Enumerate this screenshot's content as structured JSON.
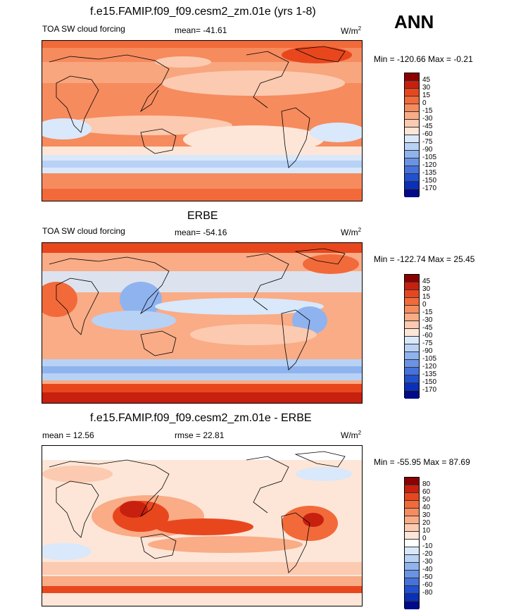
{
  "season": "ANN",
  "panels": [
    {
      "title": "f.e15.FAMIP.f09_f09.cesm2_zm.01e (yrs 1-8)",
      "left_label": "TOA SW cloud forcing",
      "center_label": "mean= -41.61",
      "units_base": "W/m",
      "units_exp": "2",
      "minmax": "Min = -120.66 Max =  -0.21",
      "colorbar": {
        "colors": [
          "#8b0000",
          "#c8200f",
          "#e8471e",
          "#f26a3a",
          "#f68b5e",
          "#f9ac86",
          "#fccab0",
          "#fde6d8",
          "#d9e8fb",
          "#b8d2f5",
          "#8fb3ee",
          "#6a93e6",
          "#4672dc",
          "#2150d0",
          "#0a2fb8",
          "#000a8a"
        ],
        "ticks": [
          "45",
          "30",
          "15",
          "0",
          "-15",
          "-30",
          "-45",
          "-60",
          "-75",
          "-90",
          "-105",
          "-120",
          "-135",
          "-150",
          "-170"
        ]
      }
    },
    {
      "title": "ERBE",
      "left_label": "TOA SW cloud forcing",
      "center_label": "mean= -54.16",
      "units_base": "W/m",
      "units_exp": "2",
      "minmax": "Min = -122.74 Max =  25.45",
      "colorbar": {
        "colors": [
          "#8b0000",
          "#c8200f",
          "#e8471e",
          "#f26a3a",
          "#f68b5e",
          "#f9ac86",
          "#fccab0",
          "#fde6d8",
          "#d9e8fb",
          "#b8d2f5",
          "#8fb3ee",
          "#6a93e6",
          "#4672dc",
          "#2150d0",
          "#0a2fb8",
          "#000a8a"
        ],
        "ticks": [
          "45",
          "30",
          "15",
          "0",
          "-15",
          "-30",
          "-45",
          "-60",
          "-75",
          "-90",
          "-105",
          "-120",
          "-135",
          "-150",
          "-170"
        ]
      }
    },
    {
      "title": "f.e15.FAMIP.f09_f09.cesm2_zm.01e - ERBE",
      "left_label": "mean =  12.56",
      "center_label": "rmse =  22.81",
      "units_base": "W/m",
      "units_exp": "2",
      "minmax": "Min = -55.95 Max =  87.69",
      "colorbar": {
        "colors": [
          "#8b0000",
          "#c8200f",
          "#e8471e",
          "#f26a3a",
          "#f68b5e",
          "#f9ac86",
          "#fccab0",
          "#fde6d8",
          "#ffffff",
          "#d9e8fb",
          "#b8d2f5",
          "#8fb3ee",
          "#6a93e6",
          "#4672dc",
          "#2150d0",
          "#0a2fb8",
          "#000a8a"
        ],
        "ticks": [
          "80",
          "60",
          "50",
          "40",
          "30",
          "20",
          "10",
          "0",
          "-10",
          "-20",
          "-30",
          "-40",
          "-50",
          "-60",
          "-80"
        ]
      }
    }
  ]
}
